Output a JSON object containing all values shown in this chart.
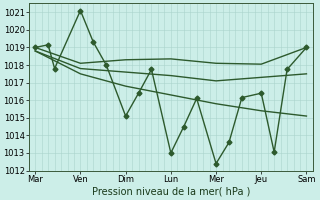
{
  "title": "",
  "xlabel": "Pression niveau de la mer( hPa )",
  "bg_color": "#cceee8",
  "grid_color": "#aad4cc",
  "line_color": "#2d5a2d",
  "ylim": [
    1012,
    1021.5
  ],
  "yticks": [
    1012,
    1013,
    1014,
    1015,
    1016,
    1017,
    1018,
    1019,
    1020,
    1021
  ],
  "day_labels": [
    "Mar",
    "Ven",
    "Dim",
    "Lun",
    "Mer",
    "Jeu",
    "Sam"
  ],
  "day_positions": [
    0,
    7,
    14,
    21,
    28,
    35,
    42
  ],
  "xlim": [
    -1,
    43
  ],
  "series_main": {
    "x": [
      0,
      2,
      3,
      7,
      9,
      11,
      14,
      16,
      18,
      21,
      23,
      25,
      28,
      30,
      32,
      35,
      37,
      39,
      42
    ],
    "y": [
      1019.0,
      1019.15,
      1017.8,
      1021.1,
      1019.3,
      1018.0,
      1015.1,
      1016.4,
      1017.75,
      1013.0,
      1014.5,
      1016.1,
      1012.4,
      1013.6,
      1016.15,
      1016.4,
      1013.05,
      1017.75,
      1019.0
    ],
    "marker": "D",
    "markersize": 2.5,
    "linewidth": 1.0
  },
  "series_smooth": [
    {
      "x": [
        0,
        7,
        14,
        21,
        28,
        35,
        42
      ],
      "y": [
        1019.0,
        1018.1,
        1018.3,
        1018.35,
        1018.1,
        1018.05,
        1019.0
      ],
      "linewidth": 1.0,
      "linestyle": "-"
    },
    {
      "x": [
        0,
        7,
        14,
        21,
        28,
        35,
        42
      ],
      "y": [
        1018.8,
        1017.8,
        1017.6,
        1017.4,
        1017.1,
        1017.3,
        1017.5
      ],
      "linewidth": 1.0,
      "linestyle": "-"
    },
    {
      "x": [
        0,
        7,
        14,
        21,
        28,
        35,
        42
      ],
      "y": [
        1018.8,
        1017.5,
        1016.8,
        1016.3,
        1015.8,
        1015.4,
        1015.1
      ],
      "linewidth": 1.0,
      "linestyle": "-"
    }
  ]
}
